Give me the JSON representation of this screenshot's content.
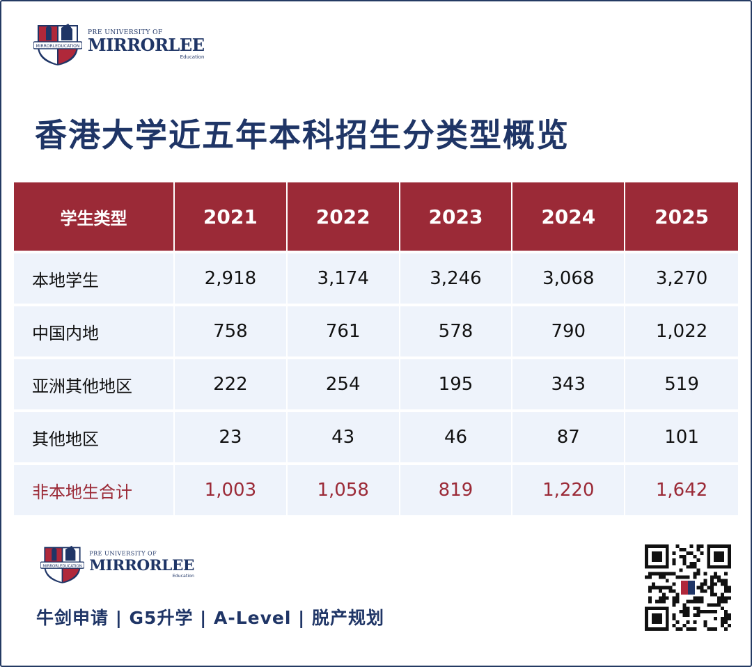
{
  "logo": {
    "pre_text": "PRE  UNIVERSITY OF",
    "brand_name": "MIRRORLEE",
    "sub_text": "Education",
    "ribbon_text": "MIRRORLEDUCATION"
  },
  "title": "香港大学近五年本科招生分类型概览",
  "chart_data": {
    "type": "table",
    "columns": [
      "学生类型",
      "2021",
      "2022",
      "2023",
      "2024",
      "2025"
    ],
    "rows": [
      {
        "label": "本地学生",
        "values": [
          "2,918",
          "3,174",
          "3,246",
          "3,068",
          "3,270"
        ]
      },
      {
        "label": "中国内地",
        "values": [
          "758",
          "761",
          "578",
          "790",
          "1,022"
        ]
      },
      {
        "label": "亚洲其他地区",
        "values": [
          "222",
          "254",
          "195",
          "343",
          "519"
        ]
      },
      {
        "label": "其他地区",
        "values": [
          "23",
          "43",
          "46",
          "87",
          "101"
        ]
      },
      {
        "label": "非本地生合计",
        "values": [
          "1,003",
          "1,058",
          "819",
          "1,220",
          "1,642"
        ]
      }
    ]
  },
  "footer": {
    "tagline": "牛剑申请 | G5升学 | A-Level | 脱产规划"
  },
  "colors": {
    "header_bg": "#9b2a37",
    "row_bg": "#eef3fb",
    "title_color": "#1f3566",
    "total_color": "#9b2a37"
  },
  "icons": {
    "crest": "shield-crest-icon",
    "qr": "qr-code-icon"
  }
}
